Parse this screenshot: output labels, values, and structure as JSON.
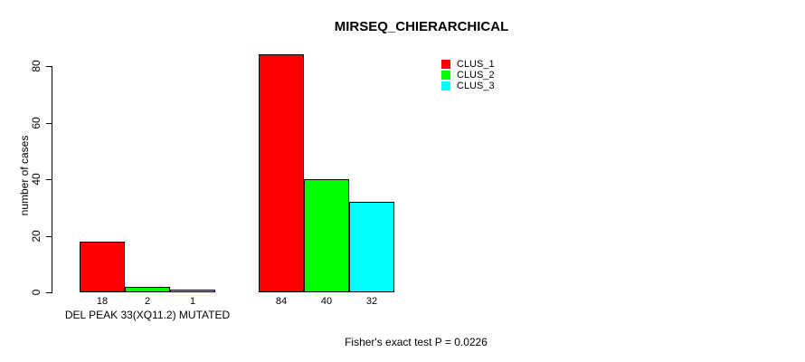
{
  "chart_data": {
    "type": "bar",
    "title": "MIRSEQ_CHIERARCHICAL",
    "xlabel": "",
    "ylabel": "number of cases",
    "ylim": [
      0,
      87
    ],
    "y_ticks": [
      0,
      20,
      40,
      60,
      80
    ],
    "grid": false,
    "legend_position": "top-right",
    "series": [
      {
        "name": "CLUS_1",
        "color": "#ff0000"
      },
      {
        "name": "CLUS_2",
        "color": "#00ff00"
      },
      {
        "name": "CLUS_3",
        "color": "#00ffff"
      }
    ],
    "groups": [
      {
        "label": "DEL PEAK 33(XQ11.2) MUTATED",
        "values": [
          18,
          2,
          1
        ]
      },
      {
        "label": "",
        "values": [
          84,
          40,
          32
        ]
      }
    ],
    "bar_value_labels": [
      [
        "18",
        "2",
        "1"
      ],
      [
        "84",
        "40",
        "32"
      ]
    ],
    "annotation": "Fisher's exact test P = 0.0226",
    "colors": {
      "bar_border": "#000000",
      "text": "#000000",
      "background": "#ffffff"
    }
  }
}
